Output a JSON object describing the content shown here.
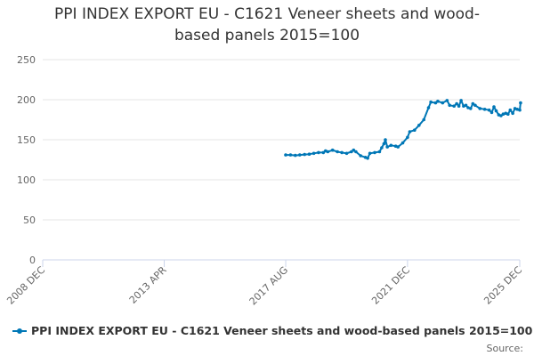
{
  "chart_data": {
    "type": "line",
    "title_lines": [
      "PPI INDEX EXPORT EU - C1621 Veneer sheets and wood-",
      "based panels 2015=100"
    ],
    "ylim": [
      0,
      250
    ],
    "y_ticks": [
      0,
      50,
      100,
      150,
      200,
      250
    ],
    "x_range": [
      2008.92,
      2025.92
    ],
    "x_ticks": [
      {
        "label": "2008 DEC",
        "x": 2008.92
      },
      {
        "label": "2013 APR",
        "x": 2013.25
      },
      {
        "label": "2017 AUG",
        "x": 2017.58
      },
      {
        "label": "2021 DEC",
        "x": 2021.92
      },
      {
        "label": "2025 DEC",
        "x": 2025.92
      }
    ],
    "grid": true,
    "legend_position": "bottom-left",
    "colors": {
      "series": "#0077b6",
      "grid": "#e6e6e6",
      "axis": "#ccd6eb"
    },
    "series": [
      {
        "name": "PPI INDEX EXPORT EU - C1621 Veneer sheets and wood-based panels 2015=100",
        "points": [
          [
            2017.58,
            131
          ],
          [
            2017.75,
            131
          ],
          [
            2017.92,
            130.5
          ],
          [
            2018.08,
            131
          ],
          [
            2018.25,
            131.5
          ],
          [
            2018.42,
            132
          ],
          [
            2018.58,
            133
          ],
          [
            2018.75,
            134
          ],
          [
            2018.92,
            134
          ],
          [
            2019.0,
            136
          ],
          [
            2019.08,
            135
          ],
          [
            2019.25,
            137
          ],
          [
            2019.42,
            135
          ],
          [
            2019.58,
            134
          ],
          [
            2019.75,
            133
          ],
          [
            2019.92,
            135
          ],
          [
            2020.0,
            137
          ],
          [
            2020.08,
            135
          ],
          [
            2020.25,
            130
          ],
          [
            2020.42,
            128
          ],
          [
            2020.5,
            127
          ],
          [
            2020.58,
            133
          ],
          [
            2020.75,
            134
          ],
          [
            2020.92,
            135
          ],
          [
            2021.0,
            140
          ],
          [
            2021.08,
            145
          ],
          [
            2021.13,
            150
          ],
          [
            2021.2,
            141
          ],
          [
            2021.33,
            143
          ],
          [
            2021.5,
            142
          ],
          [
            2021.58,
            141
          ],
          [
            2021.75,
            146
          ],
          [
            2021.92,
            153
          ],
          [
            2022.0,
            160
          ],
          [
            2022.17,
            162
          ],
          [
            2022.33,
            168
          ],
          [
            2022.5,
            175
          ],
          [
            2022.67,
            190
          ],
          [
            2022.75,
            197
          ],
          [
            2022.92,
            196
          ],
          [
            2023.0,
            198
          ],
          [
            2023.17,
            196
          ],
          [
            2023.33,
            199
          ],
          [
            2023.42,
            193
          ],
          [
            2023.58,
            192
          ],
          [
            2023.67,
            195
          ],
          [
            2023.75,
            192
          ],
          [
            2023.83,
            199
          ],
          [
            2023.92,
            192
          ],
          [
            2024.0,
            193
          ],
          [
            2024.08,
            190
          ],
          [
            2024.17,
            189
          ],
          [
            2024.25,
            195
          ],
          [
            2024.33,
            193
          ],
          [
            2024.5,
            189
          ],
          [
            2024.67,
            188
          ],
          [
            2024.83,
            187
          ],
          [
            2024.92,
            184
          ],
          [
            2025.0,
            191
          ],
          [
            2025.08,
            186
          ],
          [
            2025.17,
            181
          ],
          [
            2025.25,
            180
          ],
          [
            2025.33,
            182
          ],
          [
            2025.42,
            183
          ],
          [
            2025.5,
            182
          ],
          [
            2025.58,
            187
          ],
          [
            2025.67,
            183
          ],
          [
            2025.75,
            189
          ],
          [
            2025.83,
            188
          ],
          [
            2025.92,
            187
          ],
          [
            2025.95,
            196
          ]
        ]
      }
    ],
    "credit": "Source:"
  }
}
